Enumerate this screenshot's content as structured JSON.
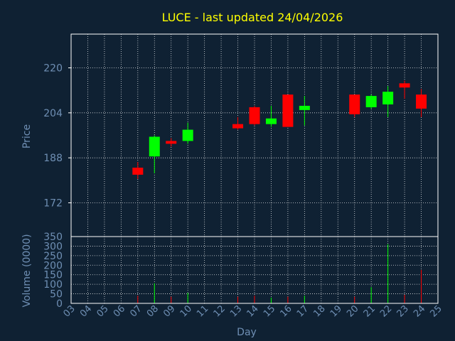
{
  "chart_data": {
    "type": "candlestick",
    "title": "LUCE - last updated 24/04/2026",
    "colors": {
      "background": "#0f2133",
      "up": "#00ff00",
      "down": "#ff0000",
      "title": "#ffff00",
      "axis_text": "#6f8fb4",
      "frame": "#ffffff",
      "grid": "#ffffff"
    },
    "grid": true,
    "price_panel": {
      "ylabel": "Price",
      "yticks": [
        172,
        188,
        204,
        220
      ],
      "ylim": [
        160,
        232
      ]
    },
    "volume_panel": {
      "ylabel": "Volume (0000)",
      "yticks": [
        0,
        50,
        100,
        150,
        200,
        250,
        300,
        350
      ],
      "ylim": [
        0,
        350
      ]
    },
    "x_axis": {
      "xlabel": "Day",
      "ticks": [
        "03",
        "04",
        "05",
        "06",
        "07",
        "08",
        "09",
        "10",
        "11",
        "12",
        "13",
        "14",
        "15",
        "16",
        "17",
        "18",
        "19",
        "20",
        "21",
        "22",
        "23",
        "24",
        "25"
      ]
    },
    "candles": [
      {
        "day": 7,
        "open": 184.5,
        "high": 186.5,
        "low": 180.5,
        "close": 182.0,
        "volume": 40
      },
      {
        "day": 8,
        "open": 188.5,
        "high": 196.0,
        "low": 182.5,
        "close": 195.5,
        "volume": 105
      },
      {
        "day": 9,
        "open": 194.0,
        "high": 195.0,
        "low": 192.0,
        "close": 193.0,
        "volume": 35
      },
      {
        "day": 10,
        "open": 194.0,
        "high": 200.5,
        "low": 193.0,
        "close": 198.0,
        "volume": 55
      },
      {
        "day": 13,
        "open": 200.0,
        "high": 202.5,
        "low": 198.0,
        "close": 198.5,
        "volume": 35
      },
      {
        "day": 14,
        "open": 206.0,
        "high": 206.5,
        "low": 199.5,
        "close": 200.0,
        "volume": 40
      },
      {
        "day": 15,
        "open": 200.0,
        "high": 206.5,
        "low": 199.0,
        "close": 202.0,
        "volume": 30
      },
      {
        "day": 16,
        "open": 210.5,
        "high": 210.5,
        "low": 199.0,
        "close": 199.0,
        "volume": 35
      },
      {
        "day": 17,
        "open": 205.0,
        "high": 210.0,
        "low": 199.5,
        "close": 206.5,
        "volume": 40
      },
      {
        "day": 20,
        "open": 210.5,
        "high": 210.5,
        "low": 202.5,
        "close": 203.5,
        "volume": 35
      },
      {
        "day": 21,
        "open": 206.0,
        "high": 210.5,
        "low": 205.5,
        "close": 210.0,
        "volume": 85
      },
      {
        "day": 22,
        "open": 207.0,
        "high": 213.5,
        "low": 202.5,
        "close": 211.5,
        "volume": 310
      },
      {
        "day": 23,
        "open": 214.5,
        "high": 215.5,
        "low": 209.0,
        "close": 213.0,
        "volume": 45
      },
      {
        "day": 24,
        "open": 210.5,
        "high": 212.5,
        "low": 202.5,
        "close": 205.5,
        "volume": 175
      }
    ]
  }
}
